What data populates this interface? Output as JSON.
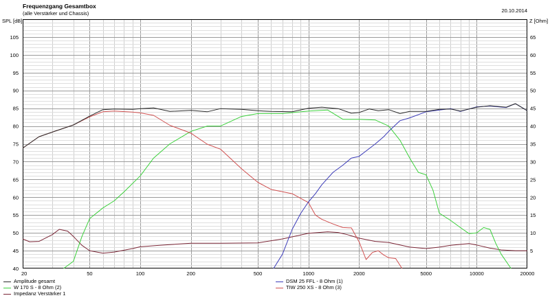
{
  "header": {
    "title": "Frequenzgang Gesamtbox",
    "subtitle": "(alle Verstärker und Chassis)",
    "date": "20.10.2014"
  },
  "chart_data": {
    "type": "line",
    "xscale": "log",
    "xlim": [
      20,
      20000
    ],
    "ylabel_left": "SPL [dB]",
    "ylabel_right": "Z [Ohm]",
    "ylim_left": [
      40,
      110
    ],
    "ylim_right": [
      0,
      70
    ],
    "grid": true,
    "legend_placement": "bottom",
    "x_ticks": [
      20,
      50,
      100,
      200,
      500,
      1000,
      2000,
      5000,
      10000,
      20000
    ],
    "y_ticks_left": [
      40,
      45,
      50,
      55,
      60,
      65,
      70,
      75,
      80,
      85,
      90,
      95,
      100,
      105
    ],
    "y_ticks_right": [
      5,
      10,
      15,
      20,
      25,
      30,
      35,
      40,
      45,
      50,
      55,
      60,
      65
    ],
    "series": [
      {
        "name": "Amplitude gesamt",
        "color": "#2a2a2a",
        "axis": "left",
        "x": [
          20,
          25,
          30,
          40,
          50,
          60,
          70,
          90,
          100,
          120,
          150,
          200,
          250,
          300,
          400,
          500,
          600,
          800,
          1000,
          1200,
          1500,
          1800,
          2000,
          2300,
          2600,
          3000,
          3500,
          4000,
          5000,
          6000,
          7000,
          8000,
          10000,
          12000,
          15000,
          17000,
          20000
        ],
        "y": [
          73.8,
          77,
          78.3,
          80.3,
          82.8,
          84.6,
          84.8,
          84.7,
          84.9,
          85.1,
          84.1,
          84.4,
          84.0,
          84.9,
          84.7,
          84.3,
          84.1,
          84.0,
          85.0,
          85.3,
          84.9,
          83.6,
          83.8,
          84.8,
          84.3,
          84.6,
          83.5,
          84.1,
          84.1,
          84.7,
          84.8,
          84.2,
          85.3,
          85.7,
          85.3,
          86.3,
          84.3
        ]
      },
      {
        "name": "W 170 S - 8 Ohm (2)",
        "color": "#3bd03b",
        "axis": "left",
        "x": [
          35,
          40,
          45,
          50,
          60,
          70,
          80,
          100,
          120,
          150,
          200,
          250,
          300,
          400,
          500,
          700,
          1000,
          1300,
          1600,
          2000,
          2500,
          3000,
          3500,
          4000,
          4500,
          5000,
          5500,
          6000,
          7000,
          8000,
          9000,
          10000,
          11000,
          12000,
          13000,
          14000,
          16000
        ],
        "y": [
          40,
          42,
          49,
          54,
          57,
          59,
          61.5,
          66,
          71,
          75,
          78.5,
          80,
          80,
          82.7,
          83.5,
          83.5,
          84.2,
          84.5,
          81.9,
          81.9,
          81.7,
          80.0,
          76.0,
          71.0,
          67.0,
          66.3,
          62.0,
          55.5,
          53.5,
          51.5,
          49.8,
          50.0,
          51.5,
          51.0,
          47.0,
          44.0,
          40
        ]
      },
      {
        "name": "Impedanz Verstärker 1",
        "color": "#7a2535",
        "axis": "right",
        "x": [
          20,
          22,
          25,
          30,
          33,
          37,
          40,
          45,
          50,
          60,
          70,
          90,
          100,
          130,
          200,
          300,
          500,
          700,
          1000,
          1300,
          1500,
          1700,
          2000,
          2500,
          3000,
          4000,
          5000,
          6000,
          7000,
          9000,
          10000,
          12000,
          14000,
          17000,
          20000
        ],
        "y": [
          8.3,
          7.5,
          7.6,
          9.5,
          11.0,
          10.5,
          9.0,
          6.5,
          5.0,
          4.3,
          4.6,
          5.6,
          6.1,
          6.5,
          7.1,
          7.1,
          7.2,
          8.3,
          9.9,
          10.3,
          10.1,
          9.5,
          8.5,
          7.6,
          7.3,
          6.0,
          5.6,
          6.0,
          6.5,
          7.0,
          6.6,
          5.7,
          5.2,
          5.0,
          5.0
        ]
      },
      {
        "name": "DSM 25 FFL - 8 Ohm (1)",
        "color": "#3a3ab8",
        "axis": "left",
        "x": [
          620,
          700,
          800,
          900,
          1000,
          1100,
          1200,
          1400,
          1600,
          1800,
          2000,
          2200,
          2500,
          2800,
          3000,
          3500,
          4000,
          5000,
          6000,
          7000,
          8000,
          10000,
          12000,
          15000,
          17000,
          20000
        ],
        "y": [
          40,
          44,
          51,
          55.5,
          58.7,
          61,
          63.5,
          67,
          69,
          71,
          71.5,
          73,
          75,
          77,
          78.5,
          81.5,
          82.3,
          84.0,
          84.5,
          84.9,
          84.1,
          85.4,
          85.6,
          85.2,
          86.3,
          84.3
        ]
      },
      {
        "name": "TIW 250 XS - 8 Ohm (3)",
        "color": "#d05050",
        "axis": "left",
        "x": [
          20,
          25,
          30,
          40,
          50,
          60,
          70,
          90,
          100,
          120,
          150,
          200,
          250,
          300,
          400,
          500,
          600,
          800,
          1000,
          1100,
          1200,
          1400,
          1600,
          1800,
          2000,
          2200,
          2400,
          2600,
          2800,
          3000,
          3300,
          3600
        ],
        "y": [
          73.8,
          77,
          78.3,
          80.3,
          82.6,
          84.0,
          84.2,
          83.9,
          83.7,
          83.0,
          80.2,
          78.0,
          74.9,
          73.5,
          68.0,
          64.2,
          62.2,
          61.0,
          58.5,
          55.0,
          53.8,
          52.5,
          51.5,
          51.4,
          47.5,
          42.5,
          44.5,
          45.0,
          43.8,
          43.0,
          42.8,
          40
        ]
      }
    ]
  }
}
